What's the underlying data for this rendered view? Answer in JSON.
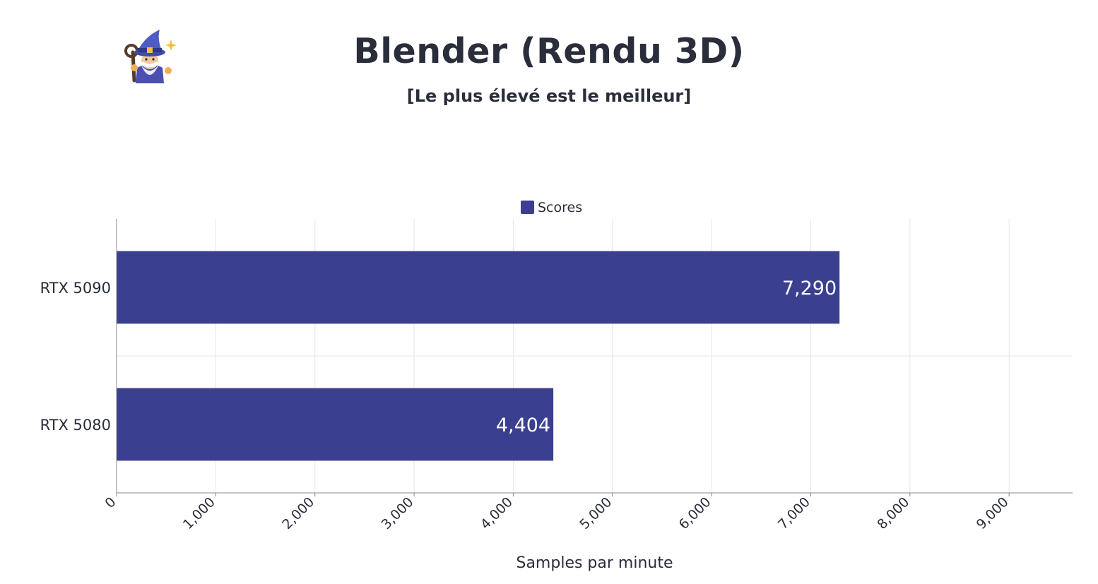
{
  "header": {
    "title": "Blender (Rendu 3D)",
    "subtitle": "[Le plus élevé est le meilleur]",
    "logo_icon": "wizard-icon"
  },
  "chart_data": {
    "type": "bar",
    "orientation": "horizontal",
    "categories": [
      "RTX 5090",
      "RTX 5080"
    ],
    "series": [
      {
        "name": "Scores",
        "values": [
          7290,
          4404
        ],
        "color": "#3a3f8f"
      }
    ],
    "value_labels": [
      "7,290",
      "4,404"
    ],
    "xlabel": "Samples par minute",
    "ylabel": "",
    "xlim": [
      0,
      9640
    ],
    "x_ticks": [
      0,
      1000,
      2000,
      3000,
      4000,
      5000,
      6000,
      7000,
      8000,
      9000
    ],
    "x_tick_labels": [
      "0",
      "1,000",
      "2,000",
      "3,000",
      "4,000",
      "5,000",
      "6,000",
      "7,000",
      "8,000",
      "9,000"
    ],
    "grid": true,
    "legend": {
      "position": "top-center",
      "entries": [
        "Scores"
      ]
    }
  },
  "colors": {
    "bar": "#3a3f8f",
    "text": "#2a2d3a",
    "grid": "#e6e6e6",
    "axis": "#888888"
  }
}
